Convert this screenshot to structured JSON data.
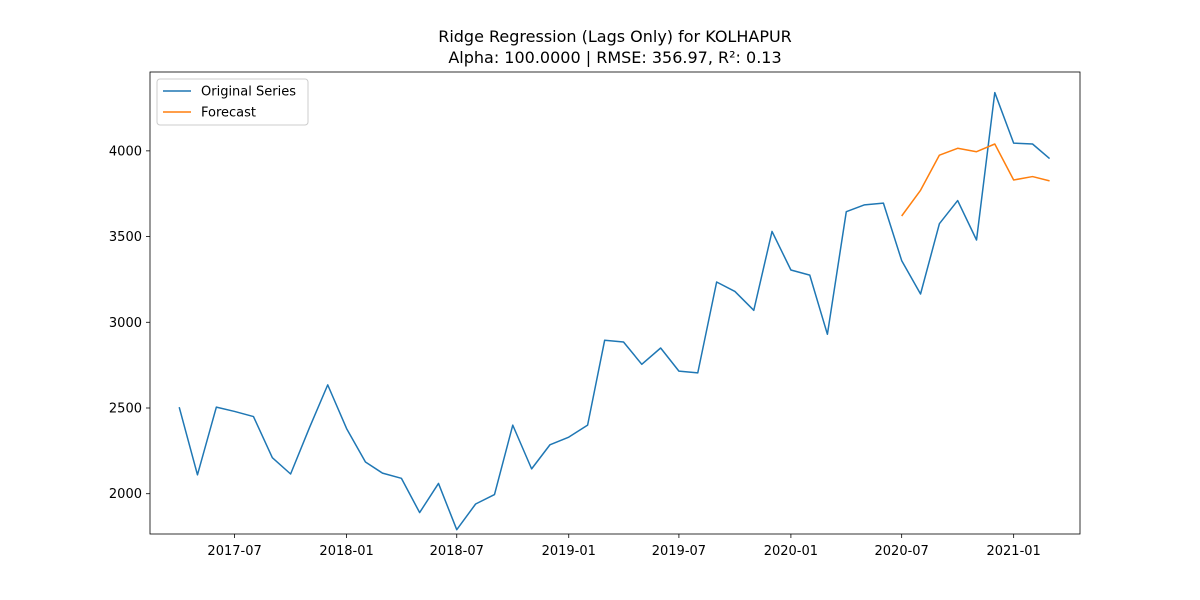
{
  "chart_data": {
    "type": "line",
    "title": "Ridge Regression (Lags Only) for KOLHAPUR",
    "subtitle": "Alpha: 100.0000 | RMSE: 356.97, R²: 0.13",
    "xlabel": "",
    "ylabel": "",
    "x_ticks": [
      "2017-07",
      "2018-01",
      "2018-07",
      "2019-01",
      "2019-07",
      "2020-01",
      "2020-07",
      "2021-01"
    ],
    "y_ticks": [
      2000,
      2500,
      3000,
      3500,
      4000
    ],
    "xlim": [
      "2017-02-12",
      "2021-04-20"
    ],
    "ylim": [
      1765,
      4460
    ],
    "grid": false,
    "legend_position": "top-left",
    "series": [
      {
        "name": "Original Series",
        "color": "#1f77b4",
        "x": [
          "2017-04-01",
          "2017-05-01",
          "2017-06-01",
          "2017-07-01",
          "2017-08-01",
          "2017-09-01",
          "2017-10-01",
          "2017-11-01",
          "2017-12-01",
          "2018-01-01",
          "2018-02-01",
          "2018-03-01",
          "2018-04-01",
          "2018-05-01",
          "2018-06-01",
          "2018-07-01",
          "2018-08-01",
          "2018-09-01",
          "2018-10-01",
          "2018-11-01",
          "2018-12-01",
          "2019-01-01",
          "2019-02-01",
          "2019-03-01",
          "2019-04-01",
          "2019-05-01",
          "2019-06-01",
          "2019-07-01",
          "2019-08-01",
          "2019-09-01",
          "2019-10-01",
          "2019-11-01",
          "2019-12-01",
          "2020-01-01",
          "2020-02-01",
          "2020-03-01",
          "2020-04-01",
          "2020-05-01",
          "2020-06-01",
          "2020-07-01",
          "2020-08-01",
          "2020-09-01",
          "2020-10-01",
          "2020-11-01",
          "2020-12-01",
          "2021-01-01",
          "2021-02-01",
          "2021-03-01"
        ],
        "values": [
          2505,
          2110,
          2505,
          2480,
          2450,
          2210,
          2115,
          2385,
          2635,
          2380,
          2185,
          2120,
          2090,
          1890,
          2060,
          1790,
          1940,
          1995,
          2400,
          2145,
          2285,
          2330,
          2400,
          2895,
          2885,
          2755,
          2850,
          2715,
          2705,
          3235,
          3180,
          3070,
          3530,
          3305,
          3275,
          2930,
          3645,
          3685,
          3695,
          3360,
          3165,
          3575,
          3710,
          3480,
          4340,
          4045,
          4040,
          3955
        ]
      },
      {
        "name": "Forecast",
        "color": "#ff7f0e",
        "x": [
          "2020-07-01",
          "2020-08-01",
          "2020-09-01",
          "2020-10-01",
          "2020-11-01",
          "2020-12-01",
          "2021-01-01",
          "2021-02-01",
          "2021-03-01"
        ],
        "values": [
          3620,
          3770,
          3975,
          4015,
          3995,
          4040,
          3830,
          3850,
          3825
        ]
      }
    ]
  }
}
